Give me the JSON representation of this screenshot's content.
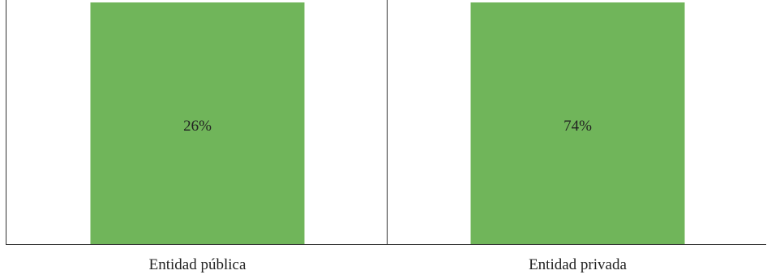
{
  "chart_data": {
    "type": "bar",
    "categories": [
      "Entidad pública",
      "Entidad privada"
    ],
    "series": [
      {
        "values": [
          26,
          74
        ],
        "labels": [
          "26%",
          "74%"
        ],
        "color": "#70b55a"
      }
    ],
    "title": "",
    "xlabel": "",
    "ylabel": "",
    "ylim": [
      0,
      100
    ],
    "legend": "none",
    "grid": false,
    "note": "Stacked 100% layout: each bar spans full height; labels show each category's share."
  },
  "colors": {
    "bar": "#70b55a",
    "axis": "#333333",
    "text": "#222222"
  }
}
